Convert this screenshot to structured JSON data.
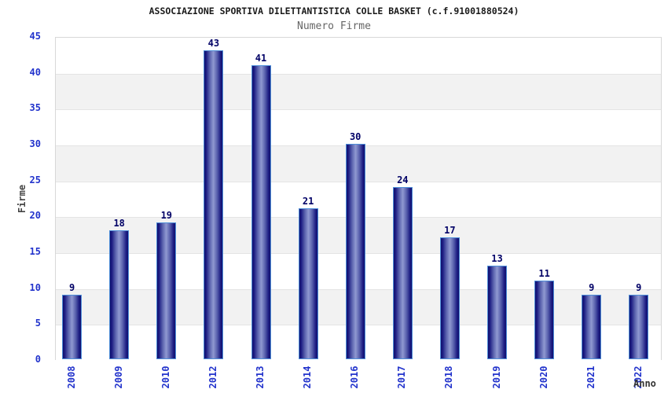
{
  "chart_data": {
    "type": "bar",
    "title": "ASSOCIAZIONE SPORTIVA DILETTANTISTICA COLLE BASKET (c.f.91001880524)",
    "subtitle": "Numero Firme",
    "xlabel": "Anno",
    "ylabel": "Firme",
    "categories": [
      "2008",
      "2009",
      "2010",
      "2012",
      "2013",
      "2014",
      "2016",
      "2017",
      "2018",
      "2019",
      "2020",
      "2021",
      "2022"
    ],
    "values": [
      9,
      18,
      19,
      43,
      41,
      21,
      30,
      24,
      17,
      13,
      11,
      9,
      9
    ],
    "bar_value_labels": true,
    "ylim": [
      0,
      45
    ],
    "ytick_step": 5,
    "legend": "none",
    "grid": "horizontal alternating bands every 5 units",
    "colors": {
      "background": "#ffffff",
      "band_light": "#ffffff",
      "band_gray": "#f2f2f2",
      "gridline": "#e4e4e4",
      "plot_border": "#d8d8d8",
      "bar_edge_dark": "#10106e",
      "bar_center_light": "#9099d1",
      "bar_border": "#4e8ed8",
      "axis_tick_label": "#2233cc",
      "bar_value_label": "#000066",
      "title_text": "#1a1a1a",
      "subtitle_text": "#666666",
      "axis_title_text": "#444444"
    }
  }
}
